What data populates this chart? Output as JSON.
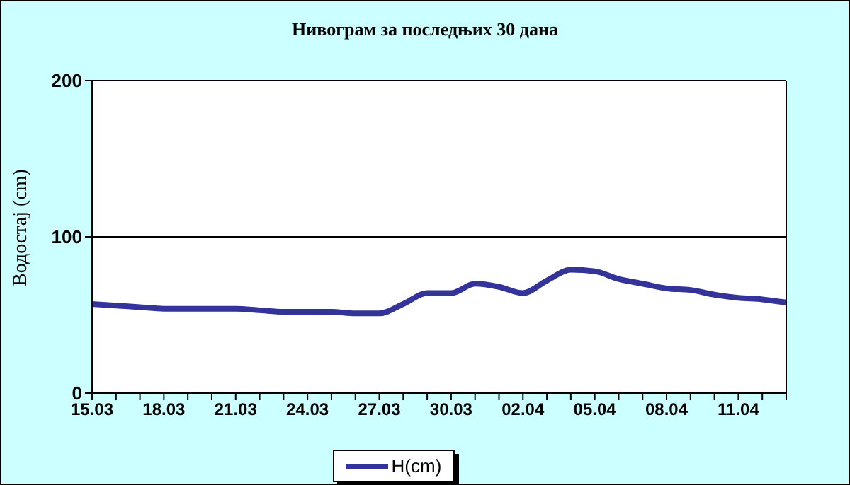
{
  "chart_data": {
    "type": "line",
    "title": "Нивограм за последњих 30 дана",
    "ylabel": "Водостај (cm)",
    "categories": [
      "15.03",
      null,
      null,
      "18.03",
      null,
      null,
      "21.03",
      null,
      null,
      "24.03",
      null,
      null,
      "27.03",
      null,
      null,
      "30.03",
      null,
      null,
      "02.04",
      null,
      null,
      "05.04",
      null,
      null,
      "08.04",
      null,
      null,
      "11.04",
      null,
      null
    ],
    "series": [
      {
        "name": "H(cm)",
        "color": "#333399",
        "values": [
          57,
          56,
          55,
          54,
          54,
          54,
          54,
          53,
          52,
          52,
          52,
          51,
          51,
          57,
          64,
          64,
          70,
          68,
          64,
          72,
          79,
          78,
          73,
          70,
          67,
          66,
          63,
          61,
          60,
          58
        ]
      }
    ],
    "ylim": [
      0,
      200
    ],
    "yticks": [
      0,
      100,
      200
    ],
    "grid": "y",
    "legend": "bottom",
    "marker": "none",
    "line_style": "solid"
  }
}
